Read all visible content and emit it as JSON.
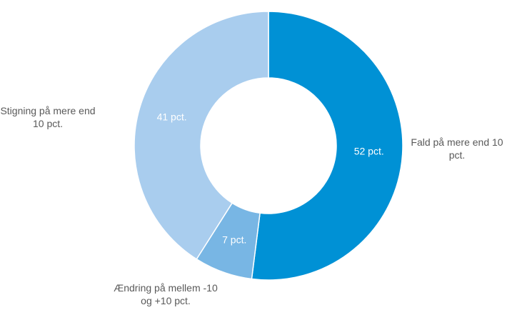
{
  "chart_data": {
    "type": "pie",
    "categories": [
      "Fald på mere end 10 pct.",
      "Ændring på mellem -10 og +10 pct.",
      "Stigning på mere end 10 pct."
    ],
    "values": [
      52,
      7,
      41
    ],
    "value_labels": [
      "52 pct.",
      "7 pct.",
      "41 pct."
    ],
    "colors": [
      "#0091d5",
      "#78b6e4",
      "#a9cdee"
    ]
  }
}
